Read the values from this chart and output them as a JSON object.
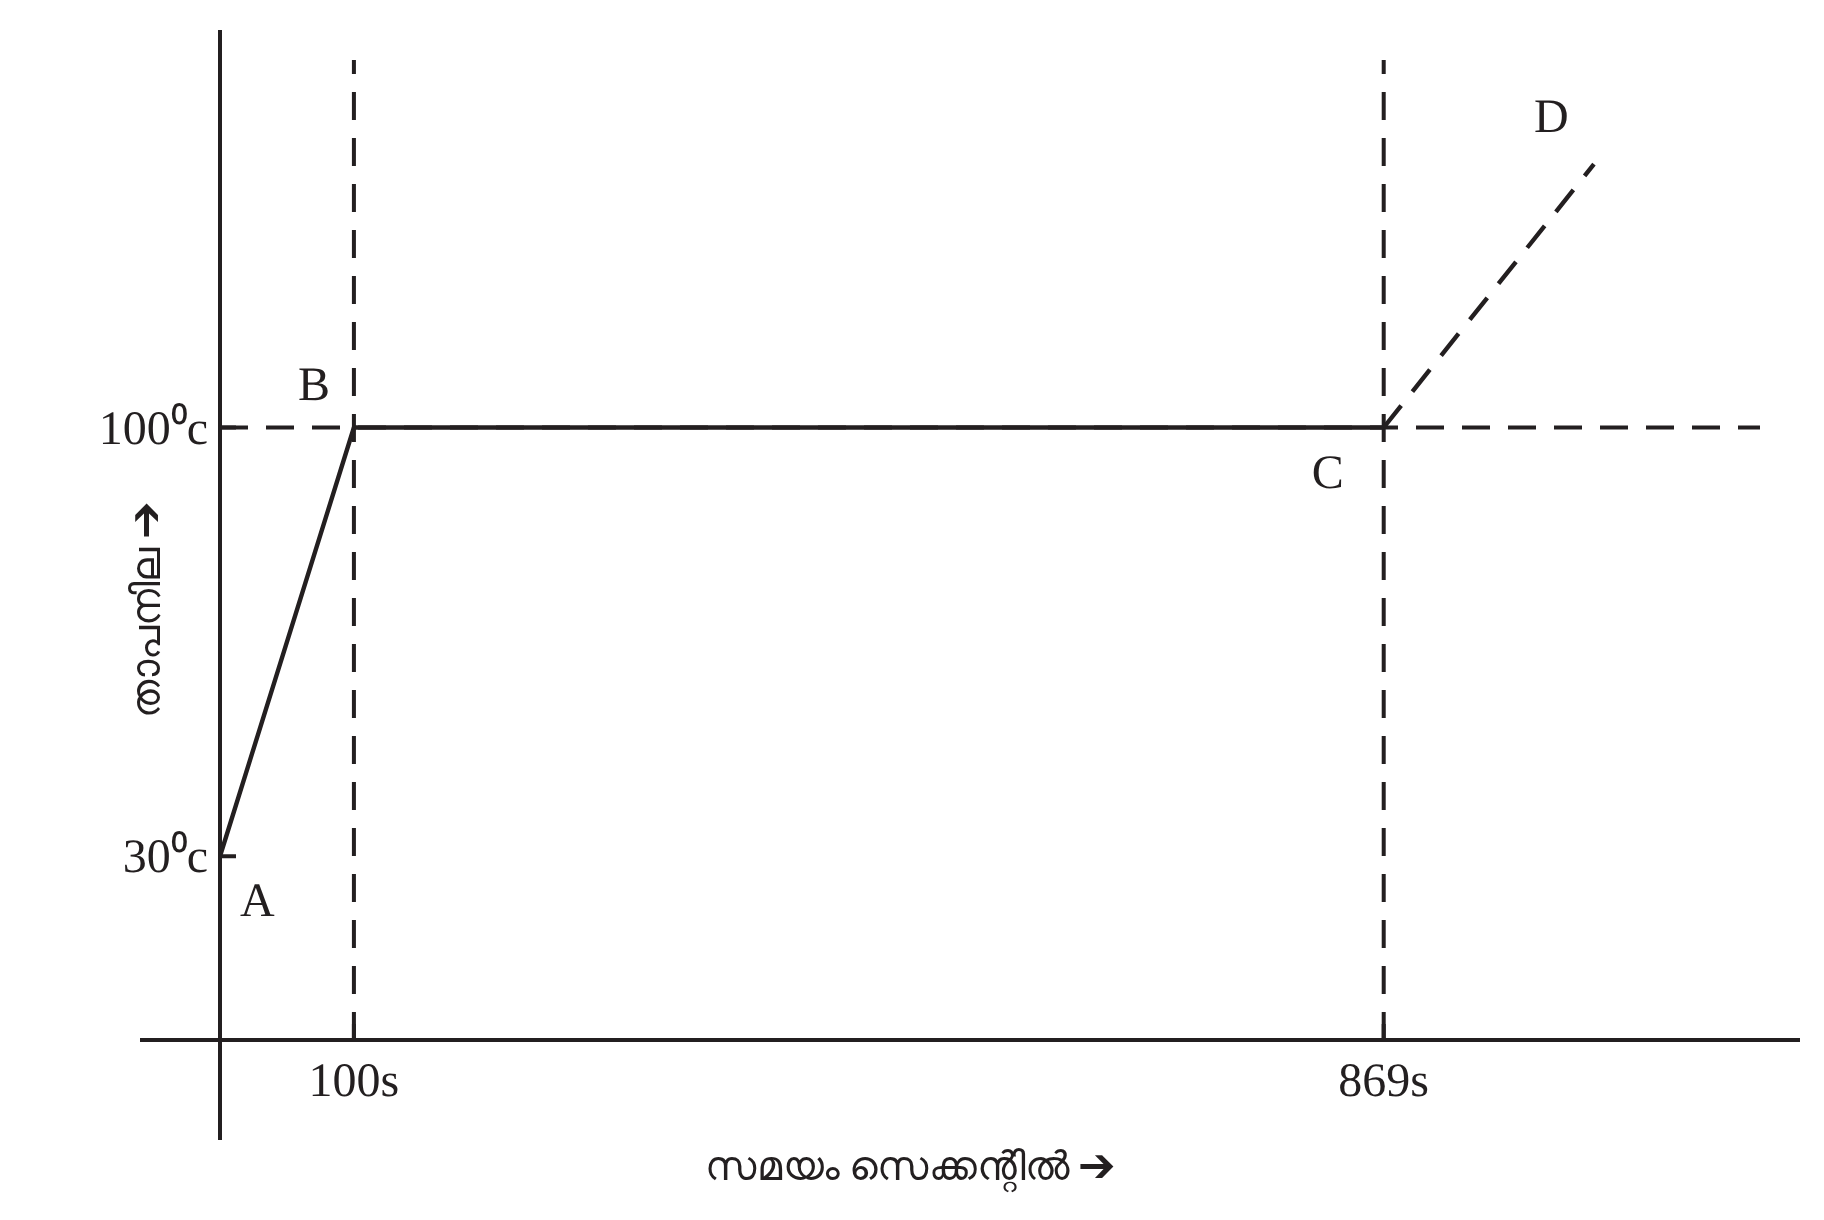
{
  "chart_data": {
    "type": "line",
    "xlabel": "സമയം സെക്കന്റിൽ ➔",
    "ylabel": "താപനില ➔",
    "xlim": [
      0,
      1150
    ],
    "ylim": [
      0,
      160
    ],
    "xticks": [
      {
        "value": 100,
        "label": "100s"
      },
      {
        "value": 869,
        "label": "869s"
      }
    ],
    "yticks": [
      {
        "value": 30,
        "label": "30⁰c"
      },
      {
        "value": 100,
        "label": "100⁰c"
      }
    ],
    "series": [
      {
        "color": "#231f20",
        "line_style": "solid",
        "x": [
          0,
          100,
          869
        ],
        "values": [
          30,
          100,
          100
        ]
      },
      {
        "color": "#231f20",
        "line_style": "dashed",
        "x": [
          869,
          1026
        ],
        "values": [
          100,
          143
        ]
      }
    ],
    "ref_lines": [
      {
        "axis": "x",
        "value": 100,
        "color": "#231f20",
        "line_style": "dashed"
      },
      {
        "axis": "x",
        "value": 869,
        "color": "#231f20",
        "line_style": "dashed"
      },
      {
        "axis": "y",
        "value": 100,
        "color": "#231f20",
        "line_style": "dashed"
      }
    ],
    "annotations": [
      {
        "text": "A",
        "x": 0,
        "y": 30
      },
      {
        "text": "B",
        "x": 100,
        "y": 100
      },
      {
        "text": "C",
        "x": 869,
        "y": 100
      },
      {
        "text": "D",
        "x": 1026,
        "y": 143
      }
    ],
    "grid": false,
    "marker": "none"
  }
}
